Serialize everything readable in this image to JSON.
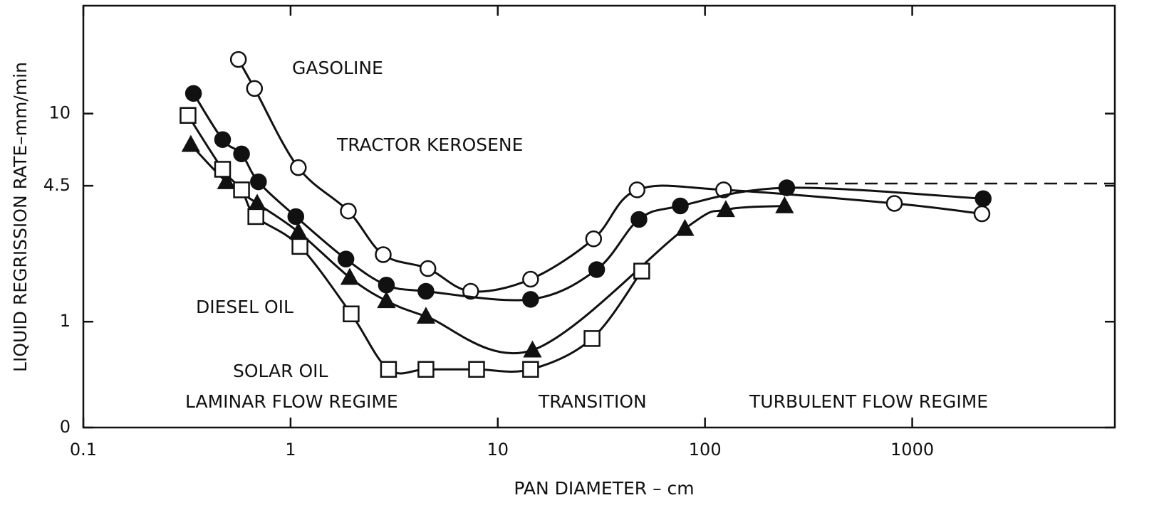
{
  "chart_data": {
    "type": "line",
    "x_label": "PAN DIAMETER – cm",
    "y_label": "LIQUID REGRISSION RATE–mm/min",
    "xlog": true,
    "ylog": true,
    "xlim": [
      0.1,
      9500
    ],
    "ylim": [
      0.31,
      33
    ],
    "xticks": [
      0.1,
      1,
      10,
      100,
      1000
    ],
    "yticks": [
      {
        "value": 0.31,
        "label": "0"
      },
      1,
      4.5,
      10
    ],
    "series": [
      {
        "name": "GASOLINE",
        "color": "#111111",
        "marker": "circle-open",
        "x": [
          0.56,
          0.67,
          1.09,
          1.9,
          2.8,
          4.6,
          7.4,
          14.4,
          29,
          47,
          123,
          820,
          2170
        ],
        "values": [
          18.2,
          13.2,
          5.5,
          3.4,
          2.1,
          1.8,
          1.4,
          1.6,
          2.5,
          4.3,
          4.3,
          3.7,
          3.3
        ]
      },
      {
        "name": "TRACTOR KEROSENE",
        "color": "#111111",
        "marker": "circle-filled",
        "x": [
          0.34,
          0.47,
          0.58,
          0.7,
          1.06,
          1.85,
          2.9,
          4.5,
          14.4,
          30,
          48,
          76,
          248,
          2200
        ],
        "values": [
          12.5,
          7.5,
          6.4,
          4.7,
          3.2,
          2.0,
          1.5,
          1.4,
          1.28,
          1.78,
          3.1,
          3.6,
          4.4,
          3.9
        ]
      },
      {
        "name": "DIESEL OIL",
        "color": "#111111",
        "marker": "triangle-filled",
        "x": [
          0.33,
          0.49,
          0.69,
          1.09,
          1.93,
          2.9,
          4.5,
          14.7,
          80,
          126,
          242
        ],
        "values": [
          7.1,
          4.7,
          3.7,
          2.7,
          1.63,
          1.26,
          1.06,
          0.73,
          2.8,
          3.45,
          3.6
        ]
      },
      {
        "name": "SOLAR OIL",
        "color": "#111111",
        "marker": "square-open",
        "x": [
          0.32,
          0.47,
          0.58,
          0.68,
          1.11,
          1.96,
          2.97,
          4.5,
          7.9,
          14.4,
          28.5,
          49.5
        ],
        "values": [
          9.8,
          5.4,
          4.3,
          3.2,
          2.3,
          1.09,
          0.59,
          0.59,
          0.59,
          0.59,
          0.83,
          1.75
        ]
      }
    ],
    "annotations": [
      "LAMINAR FLOW REGIME",
      "TRANSITION",
      "TURBULENT FLOW REGIME"
    ]
  }
}
